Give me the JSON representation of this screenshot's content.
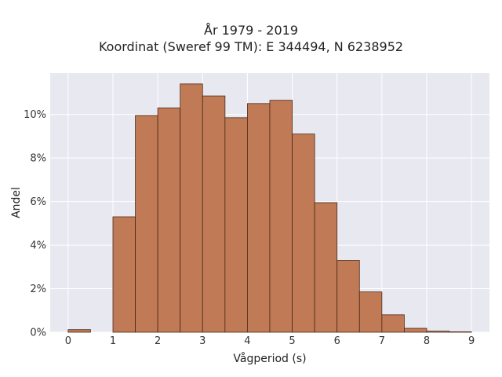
{
  "chart_data": {
    "type": "bar",
    "title": "År 1979 - 2019",
    "subtitle": "Koordinat (Sweref 99 TM): E 344494, N 6238952",
    "xlabel": "Vågperiod (s)",
    "ylabel": "Andel",
    "bin_width": 0.5,
    "bins": [
      {
        "x0": 0.0,
        "x1": 0.5,
        "value": 0.12
      },
      {
        "x0": 1.0,
        "x1": 1.5,
        "value": 5.3
      },
      {
        "x0": 1.5,
        "x1": 2.0,
        "value": 9.95
      },
      {
        "x0": 2.0,
        "x1": 2.5,
        "value": 10.3
      },
      {
        "x0": 2.5,
        "x1": 3.0,
        "value": 11.4
      },
      {
        "x0": 3.0,
        "x1": 3.5,
        "value": 10.85
      },
      {
        "x0": 3.5,
        "x1": 4.0,
        "value": 9.85
      },
      {
        "x0": 4.0,
        "x1": 4.5,
        "value": 10.5
      },
      {
        "x0": 4.5,
        "x1": 5.0,
        "value": 10.65
      },
      {
        "x0": 5.0,
        "x1": 5.5,
        "value": 9.1
      },
      {
        "x0": 5.5,
        "x1": 6.0,
        "value": 5.95
      },
      {
        "x0": 6.0,
        "x1": 6.5,
        "value": 3.3
      },
      {
        "x0": 6.5,
        "x1": 7.0,
        "value": 1.85
      },
      {
        "x0": 7.0,
        "x1": 7.5,
        "value": 0.8
      },
      {
        "x0": 7.5,
        "x1": 8.0,
        "value": 0.18
      },
      {
        "x0": 8.0,
        "x1": 8.5,
        "value": 0.05
      },
      {
        "x0": 8.5,
        "x1": 9.0,
        "value": 0.02
      }
    ],
    "xlim": [
      -0.4,
      9.4
    ],
    "ylim": [
      0,
      11.9
    ],
    "xticks": [
      0,
      1,
      2,
      3,
      4,
      5,
      6,
      7,
      8,
      9
    ],
    "yticks": [
      0,
      2,
      4,
      6,
      8,
      10
    ],
    "ytick_labels": [
      "0%",
      "2%",
      "4%",
      "6%",
      "8%",
      "10%"
    ],
    "grid": true,
    "colors": {
      "bar_fill": "#c07a55",
      "bar_stroke": "#4a2a1a",
      "plot_bg": "#e8e8f0",
      "grid": "#ffffff"
    }
  }
}
